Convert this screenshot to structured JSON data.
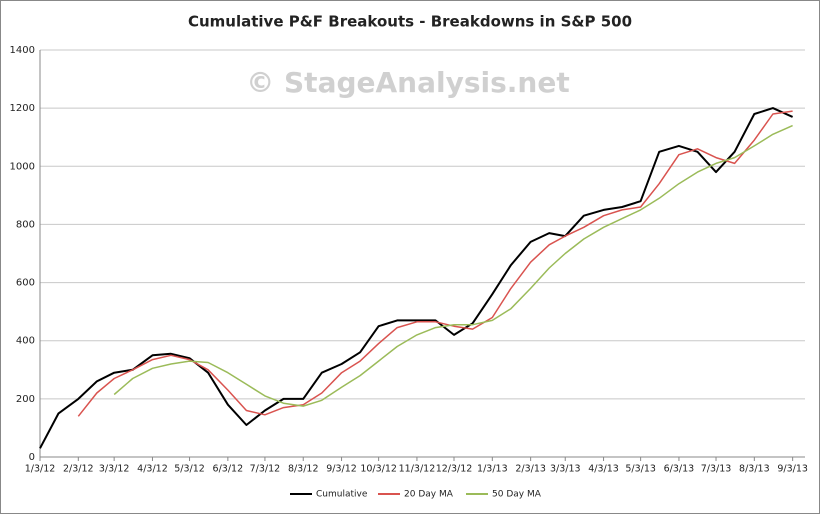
{
  "chart_data": {
    "type": "line",
    "title": "Cumulative P&F Breakouts - Breakdowns in S&P 500",
    "annotation": "© StageAnalysis.net",
    "x": [
      "2012-01-03",
      "2012-01-18",
      "2012-02-03",
      "2012-02-18",
      "2012-03-03",
      "2012-03-18",
      "2012-04-03",
      "2012-04-18",
      "2012-05-03",
      "2012-05-18",
      "2012-06-03",
      "2012-06-18",
      "2012-07-03",
      "2012-07-18",
      "2012-08-03",
      "2012-08-18",
      "2012-09-03",
      "2012-09-18",
      "2012-10-03",
      "2012-10-18",
      "2012-11-03",
      "2012-11-18",
      "2012-12-03",
      "2012-12-18",
      "2013-01-03",
      "2013-01-18",
      "2013-02-03",
      "2013-02-18",
      "2013-03-03",
      "2013-03-18",
      "2013-04-03",
      "2013-04-18",
      "2013-05-03",
      "2013-05-18",
      "2013-06-03",
      "2013-06-18",
      "2013-07-03",
      "2013-07-18",
      "2013-08-03",
      "2013-08-18",
      "2013-09-03"
    ],
    "series": [
      {
        "name": "Cumulative",
        "color": "#000000",
        "values": [
          30,
          150,
          200,
          260,
          290,
          300,
          350,
          355,
          340,
          290,
          180,
          110,
          160,
          200,
          200,
          290,
          320,
          360,
          450,
          470,
          470,
          470,
          420,
          460,
          560,
          660,
          740,
          770,
          760,
          830,
          850,
          860,
          880,
          1050,
          1070,
          1050,
          980,
          1050,
          1180,
          1200,
          1170
        ]
      },
      {
        "name": "20 Day MA",
        "color": "#d9534f",
        "values": [
          null,
          null,
          140,
          220,
          270,
          300,
          335,
          350,
          335,
          300,
          230,
          160,
          145,
          170,
          180,
          220,
          290,
          330,
          390,
          445,
          465,
          465,
          450,
          440,
          480,
          580,
          670,
          730,
          760,
          790,
          830,
          850,
          860,
          940,
          1040,
          1060,
          1030,
          1010,
          1090,
          1180,
          1190
        ]
      },
      {
        "name": "50 Day MA",
        "color": "#9bbb59",
        "values": [
          null,
          null,
          null,
          null,
          215,
          270,
          305,
          320,
          330,
          325,
          290,
          250,
          210,
          185,
          175,
          195,
          240,
          280,
          330,
          380,
          420,
          445,
          455,
          455,
          470,
          510,
          580,
          650,
          700,
          750,
          790,
          820,
          850,
          890,
          940,
          980,
          1010,
          1030,
          1070,
          1110,
          1140
        ]
      }
    ],
    "xlim": [
      "2012-01-03",
      "2013-09-13"
    ],
    "xticks": [
      {
        "value": "2012-01-03",
        "label": "1/3/12"
      },
      {
        "value": "2012-02-03",
        "label": "2/3/12"
      },
      {
        "value": "2012-03-03",
        "label": "3/3/12"
      },
      {
        "value": "2012-04-03",
        "label": "4/3/12"
      },
      {
        "value": "2012-05-03",
        "label": "5/3/12"
      },
      {
        "value": "2012-06-03",
        "label": "6/3/12"
      },
      {
        "value": "2012-07-03",
        "label": "7/3/12"
      },
      {
        "value": "2012-08-03",
        "label": "8/3/12"
      },
      {
        "value": "2012-09-03",
        "label": "9/3/12"
      },
      {
        "value": "2012-10-03",
        "label": "10/3/12"
      },
      {
        "value": "2012-11-03",
        "label": "11/3/12"
      },
      {
        "value": "2012-12-03",
        "label": "12/3/12"
      },
      {
        "value": "2013-01-03",
        "label": "1/3/13"
      },
      {
        "value": "2013-02-03",
        "label": "2/3/13"
      },
      {
        "value": "2013-03-03",
        "label": "3/3/13"
      },
      {
        "value": "2013-04-03",
        "label": "4/3/13"
      },
      {
        "value": "2013-05-03",
        "label": "5/3/13"
      },
      {
        "value": "2013-06-03",
        "label": "6/3/13"
      },
      {
        "value": "2013-07-03",
        "label": "7/3/13"
      },
      {
        "value": "2013-08-03",
        "label": "8/3/13"
      },
      {
        "value": "2013-09-03",
        "label": "9/3/13"
      }
    ],
    "ylim": [
      0,
      1400
    ],
    "yticks": [
      0,
      200,
      400,
      600,
      800,
      1000,
      1200,
      1400
    ],
    "grid": true,
    "legend": "bottom"
  }
}
